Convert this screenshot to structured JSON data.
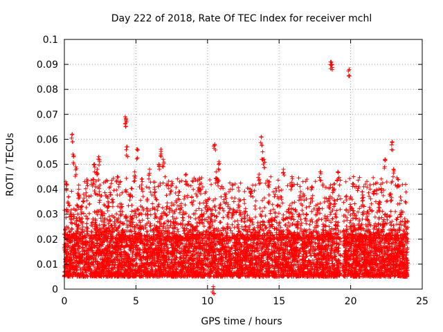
{
  "chart_data": {
    "type": "scatter",
    "title": "Day 222 of 2018, Rate Of TEC Index for receiver mchl",
    "xlabel": "GPS time / hours",
    "ylabel": "ROTI / TECUs",
    "xlim": [
      0,
      25
    ],
    "ylim": [
      0,
      0.1
    ],
    "xticks": [
      0,
      5,
      10,
      15,
      20,
      25
    ],
    "xtick_labels": [
      "0",
      "5",
      "10",
      "15",
      "20",
      "25"
    ],
    "yticks": [
      0,
      0.01,
      0.02,
      0.03,
      0.04,
      0.05,
      0.06,
      0.07,
      0.08,
      0.09,
      0.1
    ],
    "ytick_labels": [
      "0",
      "0.01",
      "0.02",
      "0.03",
      "0.04",
      "0.05",
      "0.06",
      "0.07",
      "0.08",
      "0.09",
      "0.1"
    ],
    "grid": true,
    "marker": "plus",
    "color": "#ff0000",
    "series": [
      {
        "name": "ROTI",
        "points": [
          [
            0.05,
            0.012
          ],
          [
            0.1,
            0.043
          ],
          [
            0.15,
            0.015
          ],
          [
            0.2,
            0.022
          ],
          [
            0.3,
            0.037
          ],
          [
            0.35,
            0.01
          ],
          [
            0.45,
            0.03
          ],
          [
            0.55,
            0.062
          ],
          [
            0.6,
            0.054
          ],
          [
            0.7,
            0.018
          ],
          [
            0.8,
            0.049
          ],
          [
            0.9,
            0.025
          ],
          [
            1.0,
            0.04
          ],
          [
            1.1,
            0.013
          ],
          [
            1.2,
            0.033
          ],
          [
            1.35,
            0.038
          ],
          [
            1.5,
            0.021
          ],
          [
            1.6,
            0.028
          ],
          [
            1.75,
            0.009
          ],
          [
            1.9,
            0.019
          ],
          [
            2.0,
            0.044
          ],
          [
            2.1,
            0.05
          ],
          [
            2.2,
            0.026
          ],
          [
            2.3,
            0.048
          ],
          [
            2.4,
            0.053
          ],
          [
            2.5,
            0.016
          ],
          [
            2.6,
            0.031
          ],
          [
            2.75,
            0.012
          ],
          [
            2.9,
            0.024
          ],
          [
            3.05,
            0.035
          ],
          [
            3.2,
            0.041
          ],
          [
            3.35,
            0.011
          ],
          [
            3.5,
            0.027
          ],
          [
            3.7,
            0.045
          ],
          [
            3.85,
            0.02
          ],
          [
            4.0,
            0.034
          ],
          [
            4.1,
            0.023
          ],
          [
            4.25,
            0.069
          ],
          [
            4.3,
            0.068
          ],
          [
            4.35,
            0.057
          ],
          [
            4.45,
            0.014
          ],
          [
            4.6,
            0.038
          ],
          [
            4.75,
            0.029
          ],
          [
            4.9,
            0.047
          ],
          [
            5.0,
            0.01
          ],
          [
            5.1,
            0.056
          ],
          [
            5.25,
            0.022
          ],
          [
            5.4,
            0.044
          ],
          [
            5.6,
            0.018
          ],
          [
            5.8,
            0.036
          ],
          [
            5.95,
            0.048
          ],
          [
            6.1,
            0.013
          ],
          [
            6.3,
            0.04
          ],
          [
            6.45,
            0.025
          ],
          [
            6.6,
            0.05
          ],
          [
            6.75,
            0.056
          ],
          [
            6.9,
            0.052
          ],
          [
            7.0,
            0.017
          ],
          [
            7.15,
            0.033
          ],
          [
            7.3,
            0.009
          ],
          [
            7.5,
            0.043
          ],
          [
            7.65,
            0.028
          ],
          [
            7.8,
            0.021
          ],
          [
            8.0,
            0.039
          ],
          [
            8.15,
            0.013
          ],
          [
            8.3,
            0.031
          ],
          [
            8.5,
            0.046
          ],
          [
            8.7,
            0.018
          ],
          [
            8.9,
            0.037
          ],
          [
            9.1,
            0.024
          ],
          [
            9.3,
            0.011
          ],
          [
            9.45,
            0.042
          ],
          [
            9.6,
            0.03
          ],
          [
            9.8,
            0.016
          ],
          [
            9.95,
            0.035
          ],
          [
            10.1,
            0.022
          ],
          [
            10.3,
            0.012
          ],
          [
            10.4,
            0.001
          ],
          [
            10.5,
            0.058
          ],
          [
            10.6,
            0.047
          ],
          [
            10.7,
            0.044
          ],
          [
            10.8,
            0.051
          ],
          [
            10.9,
            0.034
          ],
          [
            11.0,
            0.019
          ],
          [
            11.2,
            0.038
          ],
          [
            11.4,
            0.026
          ],
          [
            11.6,
            0.014
          ],
          [
            11.8,
            0.032
          ],
          [
            12.0,
            0.021
          ],
          [
            12.2,
            0.036
          ],
          [
            12.4,
            0.01
          ],
          [
            12.6,
            0.029
          ],
          [
            12.8,
            0.017
          ],
          [
            13.0,
            0.04
          ],
          [
            13.2,
            0.024
          ],
          [
            13.4,
            0.013
          ],
          [
            13.6,
            0.046
          ],
          [
            13.75,
            0.061
          ],
          [
            13.85,
            0.055
          ],
          [
            13.95,
            0.052
          ],
          [
            14.1,
            0.02
          ],
          [
            14.3,
            0.043
          ],
          [
            14.5,
            0.028
          ],
          [
            14.7,
            0.015
          ],
          [
            14.9,
            0.037
          ],
          [
            15.1,
            0.023
          ],
          [
            15.3,
            0.048
          ],
          [
            15.5,
            0.011
          ],
          [
            15.7,
            0.032
          ],
          [
            15.9,
            0.045
          ],
          [
            16.1,
            0.019
          ],
          [
            16.3,
            0.027
          ],
          [
            16.5,
            0.039
          ],
          [
            16.7,
            0.012
          ],
          [
            16.9,
            0.03
          ],
          [
            17.1,
            0.022
          ],
          [
            17.3,
            0.041
          ],
          [
            17.5,
            0.016
          ],
          [
            17.7,
            0.034
          ],
          [
            17.9,
            0.047
          ],
          [
            18.1,
            0.025
          ],
          [
            18.3,
            0.013
          ],
          [
            18.5,
            0.036
          ],
          [
            18.6,
            0.091
          ],
          [
            18.7,
            0.09
          ],
          [
            18.8,
            0.042
          ],
          [
            18.95,
            0.029
          ],
          [
            19.1,
            0.047
          ],
          [
            19.2,
            0.018
          ],
          [
            19.45,
            0.01
          ],
          [
            19.6,
            0.022
          ],
          [
            19.7,
            0.012
          ],
          [
            19.9,
            0.088
          ],
          [
            20.0,
            0.033
          ],
          [
            20.2,
            0.045
          ],
          [
            20.4,
            0.016
          ],
          [
            20.6,
            0.028
          ],
          [
            20.8,
            0.039
          ],
          [
            21.0,
            0.012
          ],
          [
            21.2,
            0.031
          ],
          [
            21.4,
            0.022
          ],
          [
            21.6,
            0.042
          ],
          [
            21.8,
            0.017
          ],
          [
            22.0,
            0.035
          ],
          [
            22.2,
            0.026
          ],
          [
            22.4,
            0.052
          ],
          [
            22.6,
            0.013
          ],
          [
            22.8,
            0.038
          ],
          [
            22.9,
            0.059
          ],
          [
            23.0,
            0.048
          ],
          [
            23.15,
            0.021
          ],
          [
            23.3,
            0.044
          ],
          [
            23.5,
            0.03
          ],
          [
            23.65,
            0.016
          ],
          [
            23.8,
            0.027
          ],
          [
            23.9,
            0.009
          ]
        ]
      }
    ],
    "density_band": {
      "description_series": "dense background cloud",
      "ranges": [
        {
          "x": [
            0.0,
            19.3
          ],
          "y_min": 0.005,
          "y_max": 0.022
        },
        {
          "x": [
            19.5,
            24.0
          ],
          "y_min": 0.005,
          "y_max": 0.022
        }
      ]
    }
  }
}
